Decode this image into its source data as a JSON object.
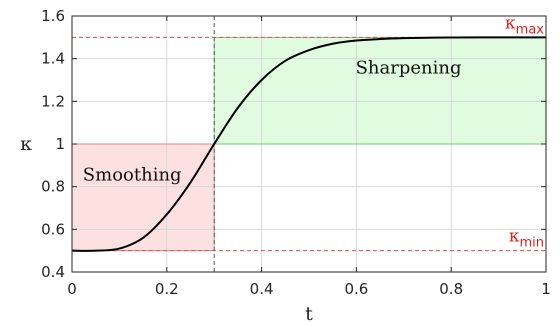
{
  "chart_data": {
    "type": "line",
    "xlabel": "t",
    "ylabel": "κ",
    "xlim": [
      0,
      1
    ],
    "ylim": [
      0.4,
      1.6
    ],
    "x_ticks": [
      0,
      0.2,
      0.4,
      0.6,
      0.8,
      1
    ],
    "x_tick_labels": [
      "0",
      "0.2",
      "0.4",
      "0.6",
      "0.8",
      "1"
    ],
    "y_ticks": [
      0.4,
      0.6,
      0.8,
      1,
      1.2,
      1.4,
      1.6
    ],
    "y_tick_labels": [
      "0.4",
      "0.6",
      "0.8",
      "1",
      "1.2",
      "1.4",
      "1.6"
    ],
    "grid": true,
    "series": [
      {
        "color": "#000000",
        "x": [
          0,
          0.05,
          0.1,
          0.15,
          0.2,
          0.25,
          0.3,
          0.35,
          0.4,
          0.45,
          0.5,
          0.55,
          0.6,
          0.65,
          0.7,
          0.75,
          0.8,
          0.9,
          1
        ],
        "y": [
          0.5,
          0.5,
          0.51,
          0.56,
          0.67,
          0.82,
          1.0,
          1.17,
          1.3,
          1.39,
          1.44,
          1.47,
          1.485,
          1.492,
          1.496,
          1.498,
          1.499,
          1.5,
          1.5
        ]
      }
    ],
    "reference_lines": [
      {
        "axis": "y",
        "value": 1.5,
        "color": "#e05050",
        "style": "dashed"
      },
      {
        "axis": "y",
        "value": 0.5,
        "color": "#e05050",
        "style": "dashed"
      },
      {
        "axis": "x",
        "value": 0.3,
        "color": "#555555",
        "style": "dashed"
      }
    ],
    "regions": [
      {
        "name": "smoothing",
        "x": [
          0,
          0.3
        ],
        "y": [
          0.5,
          1.0
        ],
        "fill": "#fde0e0",
        "stroke": "#e07070"
      },
      {
        "name": "sharpening",
        "x": [
          0.3,
          1.0
        ],
        "y": [
          1.0,
          1.5
        ],
        "fill": "#e0fbe0",
        "stroke": "#60c060"
      }
    ],
    "annotations": [
      {
        "text": "Smoothing",
        "x": 0.127,
        "y": 0.83
      },
      {
        "text": "Sharpening",
        "x": 0.71,
        "y": 1.33
      }
    ],
    "kappa_max": {
      "symbol": "κ",
      "sub": "max",
      "y": 1.5
    },
    "kappa_min": {
      "symbol": "κ",
      "sub": "min",
      "y": 0.5
    }
  }
}
